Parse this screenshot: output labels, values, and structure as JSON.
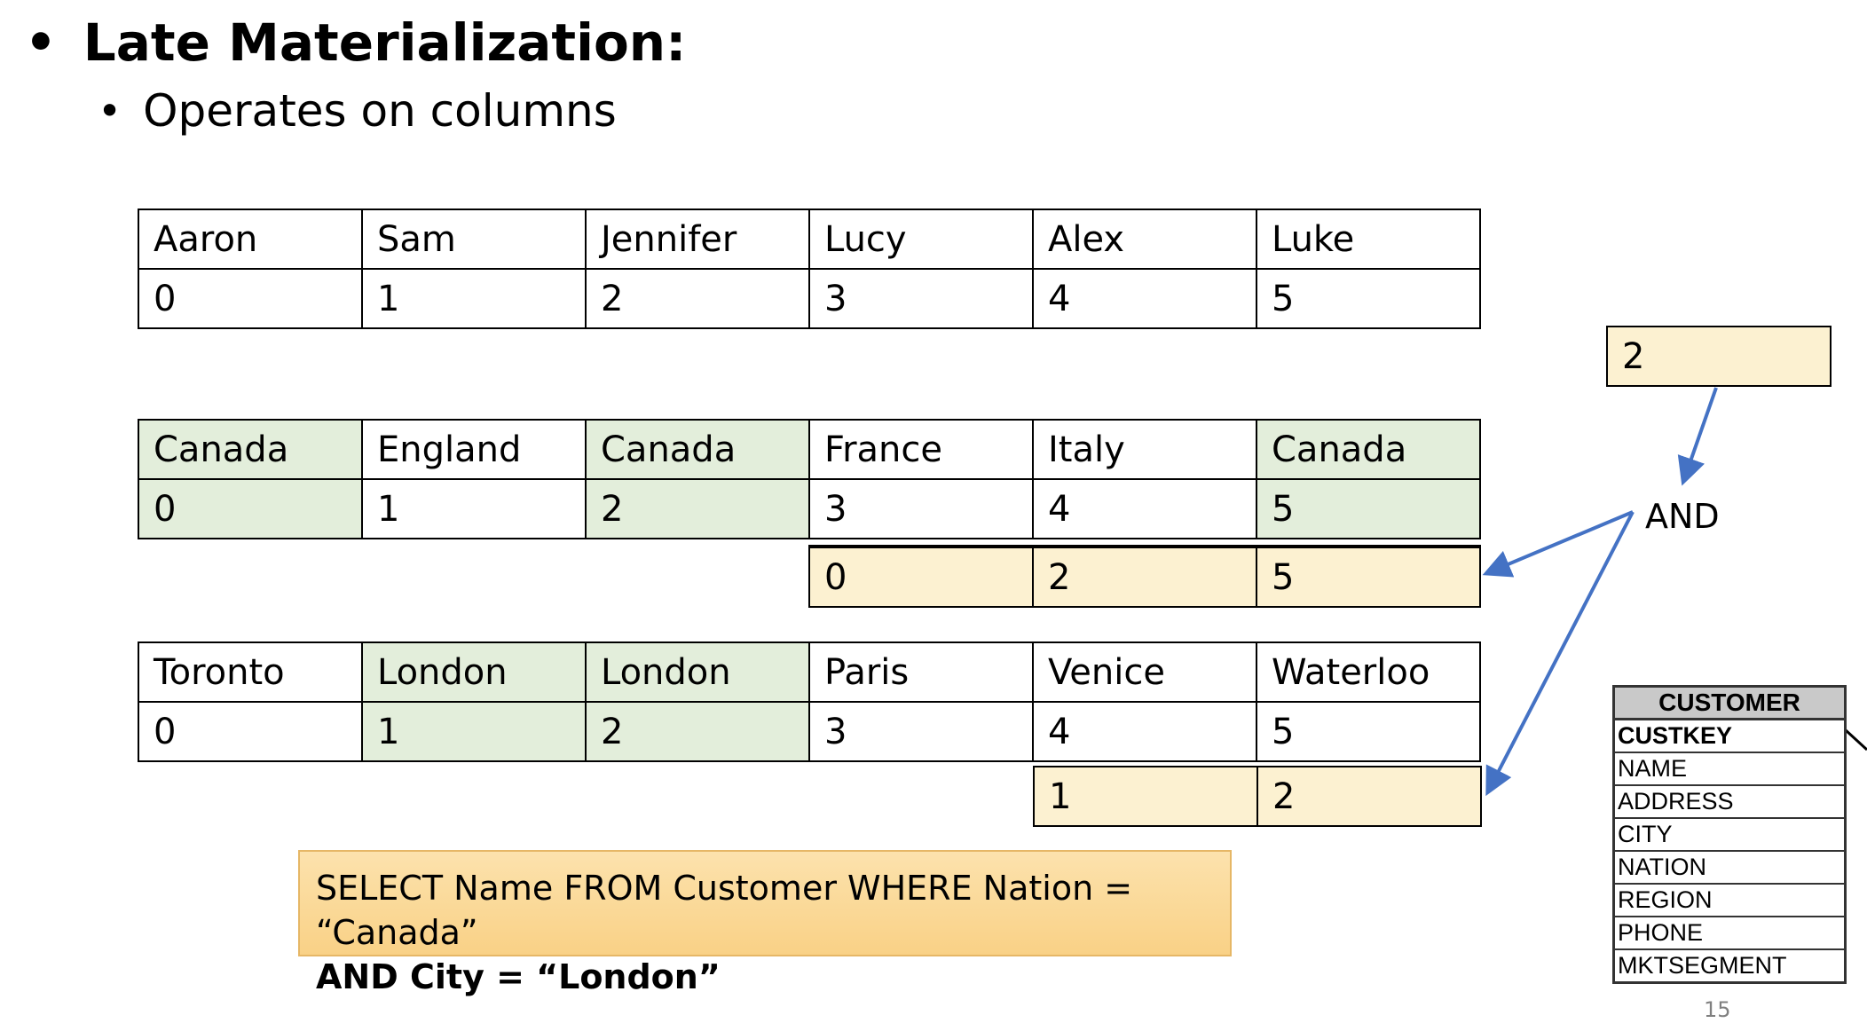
{
  "title": "Late Materialization:",
  "subtitle": "Operates on columns",
  "names": {
    "values": [
      "Aaron",
      "Sam",
      "Jennifer",
      "Lucy",
      "Alex",
      "Luke"
    ],
    "positions": [
      "0",
      "1",
      "2",
      "3",
      "4",
      "5"
    ]
  },
  "nations": {
    "values": [
      "Canada",
      "England",
      "Canada",
      "France",
      "Italy",
      "Canada"
    ],
    "positions": [
      "0",
      "1",
      "2",
      "3",
      "4",
      "5"
    ],
    "highlighted": [
      0,
      2,
      5
    ]
  },
  "nation_match_positions": [
    "0",
    "2",
    "5"
  ],
  "cities": {
    "values": [
      "Toronto",
      "London",
      "London",
      "Paris",
      "Venice",
      "Waterloo"
    ],
    "positions": [
      "0",
      "1",
      "2",
      "3",
      "4",
      "5"
    ],
    "highlighted": [
      1,
      2
    ]
  },
  "city_match_positions": [
    "1",
    "2"
  ],
  "and_result": "2",
  "and_label": "AND",
  "sql": {
    "line1": "SELECT Name FROM Customer WHERE Nation = “Canada”",
    "line2": "AND City = “London”"
  },
  "customer_table": {
    "header": "CUSTOMER",
    "fields": [
      "CUSTKEY",
      "NAME",
      "ADDRESS",
      "CITY",
      "NATION",
      "REGION",
      "PHONE",
      "MKTSEGMENT"
    ]
  },
  "page_number": "15",
  "colors": {
    "match_green": "#e3eedb",
    "position_yellow": "#fcf1d1",
    "arrow_blue": "#4472c4"
  }
}
